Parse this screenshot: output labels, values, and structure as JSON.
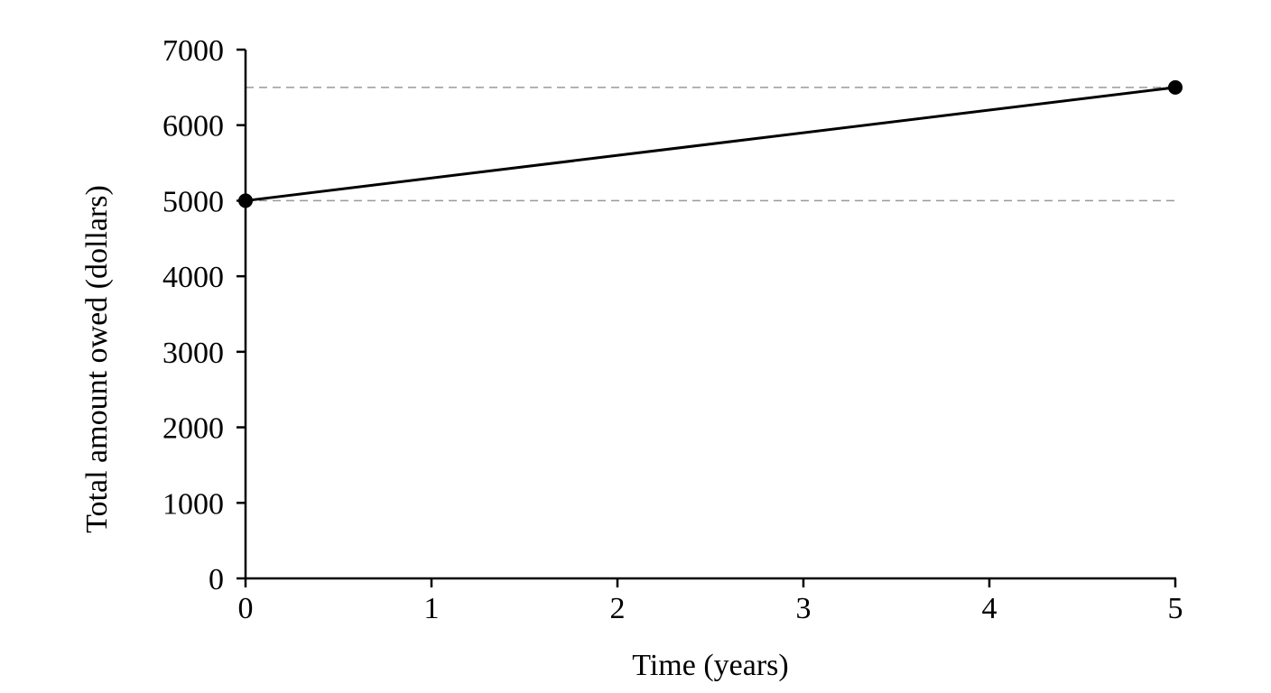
{
  "chart_data": {
    "type": "line",
    "title": "",
    "xlabel": "Time (years)",
    "ylabel": "Total amount owed (dollars)",
    "xlim": [
      0,
      5
    ],
    "ylim": [
      0,
      7000
    ],
    "x_ticks": [
      0,
      1,
      2,
      3,
      4,
      5
    ],
    "y_ticks": [
      0,
      1000,
      2000,
      3000,
      4000,
      5000,
      6000,
      7000
    ],
    "x_tick_labels": [
      "0",
      "1",
      "2",
      "3",
      "4",
      "5"
    ],
    "y_tick_labels": [
      "0",
      "1000",
      "2000",
      "3000",
      "4000",
      "5000",
      "6000",
      "7000"
    ],
    "series": [
      {
        "x": [
          0,
          5
        ],
        "y": [
          5000,
          6500
        ],
        "color": "#000000",
        "markers": true
      }
    ],
    "reference_lines": [
      {
        "orientation": "horizontal",
        "y": 5000,
        "style": "dashed",
        "color": "#999999"
      },
      {
        "orientation": "horizontal",
        "y": 6500,
        "style": "dashed",
        "color": "#999999"
      }
    ],
    "grid": false,
    "legend": "none"
  }
}
